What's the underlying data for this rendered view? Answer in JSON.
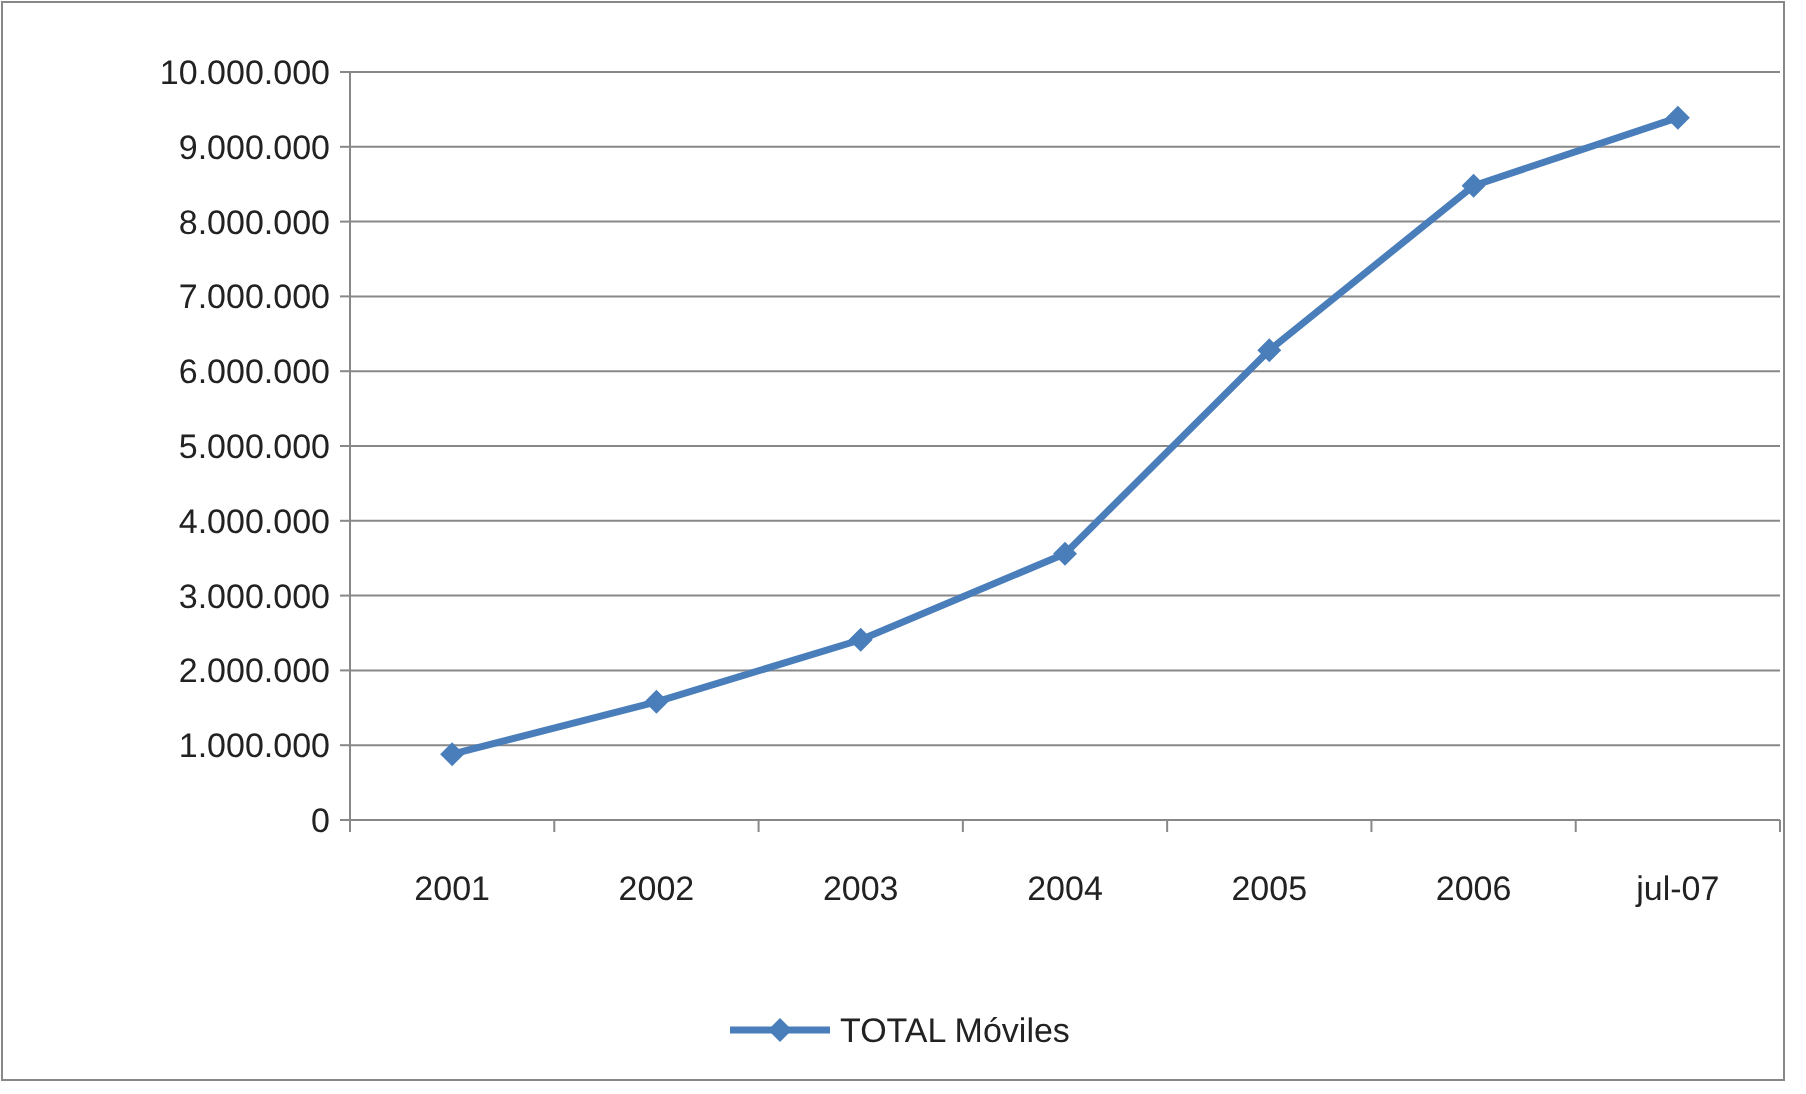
{
  "chart_data": {
    "type": "line",
    "categories": [
      "2001",
      "2002",
      "2003",
      "2004",
      "2005",
      "2006",
      "jul-07"
    ],
    "series": [
      {
        "name": "TOTAL Móviles",
        "color": "#4a7ebb",
        "values": [
          880000,
          1580000,
          2410000,
          3560000,
          6280000,
          8480000,
          9390000
        ]
      }
    ],
    "ylim": [
      0,
      10000000
    ],
    "yticks": [
      0,
      {
        "value": 1000000,
        "label": "1.000.000"
      },
      {
        "value": 2000000,
        "label": "2.000.000"
      },
      {
        "value": 3000000,
        "label": "3.000.000"
      },
      {
        "value": 4000000,
        "label": "4.000.000"
      },
      {
        "value": 5000000,
        "label": "5.000.000"
      },
      {
        "value": 6000000,
        "label": "6.000.000"
      },
      {
        "value": 7000000,
        "label": "7.000.000"
      },
      {
        "value": 8000000,
        "label": "8.000.000"
      },
      {
        "value": 9000000,
        "label": "9.000.000"
      },
      {
        "value": 10000000,
        "label": "10.000.000"
      }
    ],
    "grid": "y",
    "legend": "bottom",
    "marker": "diamond",
    "line_style": "solid"
  }
}
